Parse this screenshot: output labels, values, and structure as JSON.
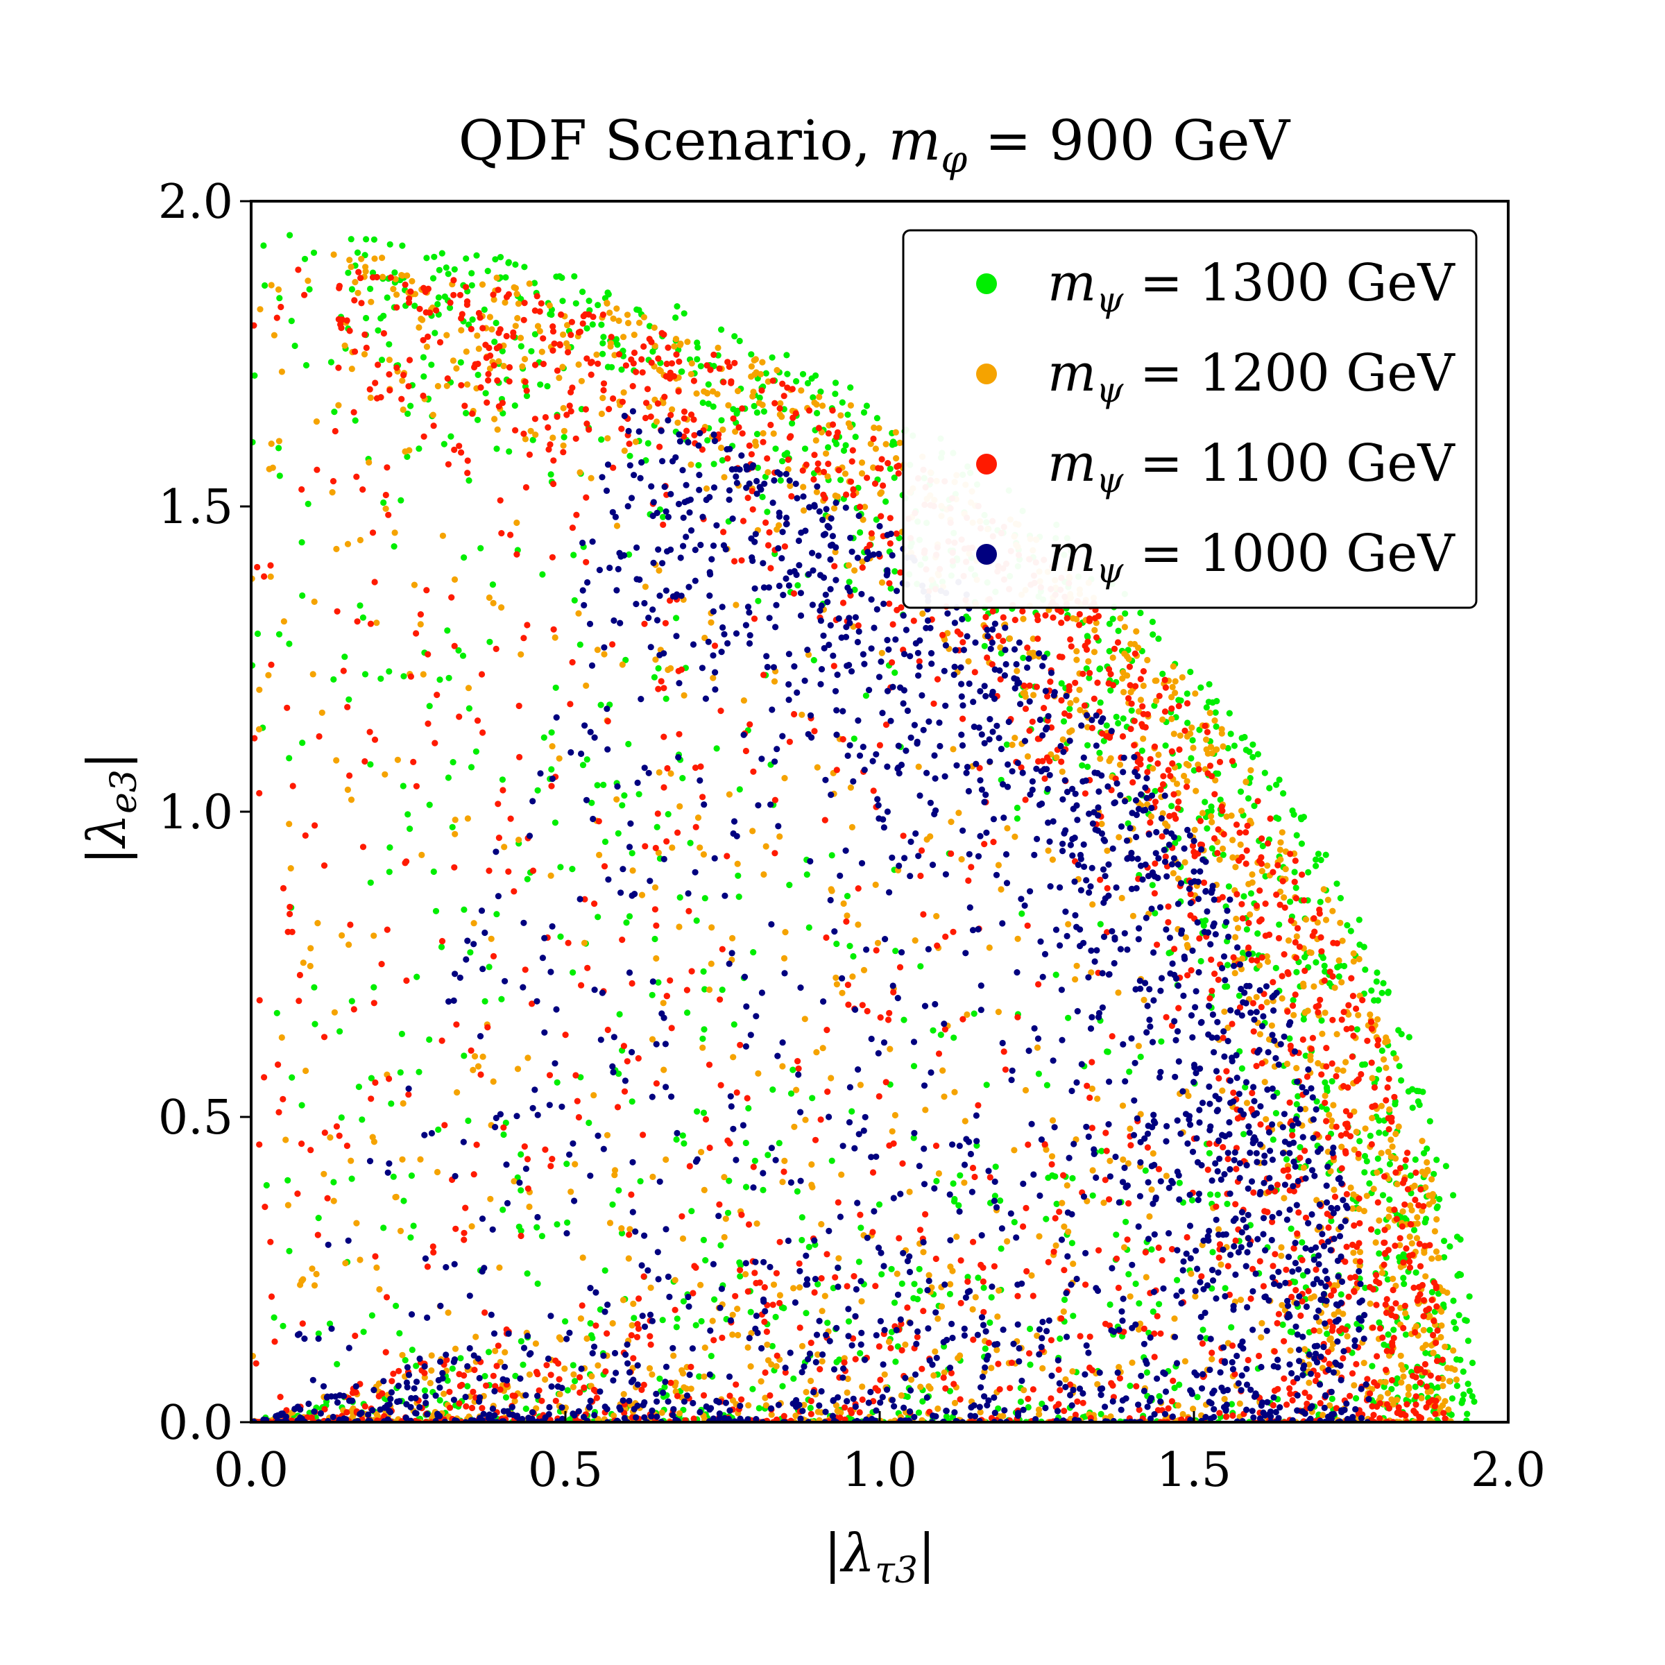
{
  "chart_data": {
    "type": "scatter",
    "title": "QDF Scenario, m_φ = 900 GeV",
    "title_parts": {
      "prefix": "QDF Scenario, ",
      "symbol": "m",
      "subscript": "φ",
      "suffix": " = 900 GeV"
    },
    "xlabel": "|λ_τ3|",
    "xlabel_parts": {
      "left": "|λ",
      "sub": "τ3",
      "right": "|"
    },
    "ylabel": "|λ_e3|",
    "ylabel_parts": {
      "left": "|λ",
      "sub": "e3",
      "right": "|"
    },
    "xlim": [
      0.0,
      2.0
    ],
    "ylim": [
      0.0,
      2.0
    ],
    "xticks": [
      0.0,
      0.5,
      1.0,
      1.5,
      2.0
    ],
    "yticks": [
      0.0,
      0.5,
      1.0,
      1.5,
      2.0
    ],
    "xtick_labels": [
      "0.0",
      "0.5",
      "1.0",
      "1.5",
      "2.0"
    ],
    "ytick_labels": [
      "0.0",
      "0.5",
      "1.0",
      "1.5",
      "2.0"
    ],
    "grid": false,
    "legend_position": "top-right",
    "series": [
      {
        "name": "m_ψ = 1300 GeV",
        "symbol": "m",
        "subscript": "ψ",
        "value": "= 1300 GeV",
        "color": "#00ee00",
        "rmax": 1.95,
        "band_inner": 1.65,
        "seed": 13,
        "n": 1700
      },
      {
        "name": "m_ψ = 1200 GeV",
        "symbol": "m",
        "subscript": "ψ",
        "value": "= 1200 GeV",
        "color": "#f5a300",
        "rmax": 1.92,
        "band_inner": 1.63,
        "seed": 12,
        "n": 1700
      },
      {
        "name": "m_ψ = 1100 GeV",
        "symbol": "m",
        "subscript": "ψ",
        "value": "= 1100 GeV",
        "color": "#ff1a00",
        "rmax": 1.9,
        "band_inner": 1.58,
        "seed": 11,
        "n": 1900
      },
      {
        "name": "m_ψ = 1000 GeV",
        "symbol": "m",
        "subscript": "ψ",
        "value": "= 1000 GeV",
        "color": "#00007f",
        "rmax": 1.78,
        "band_inner": 1.38,
        "seed": 10,
        "n": 2100
      }
    ]
  }
}
